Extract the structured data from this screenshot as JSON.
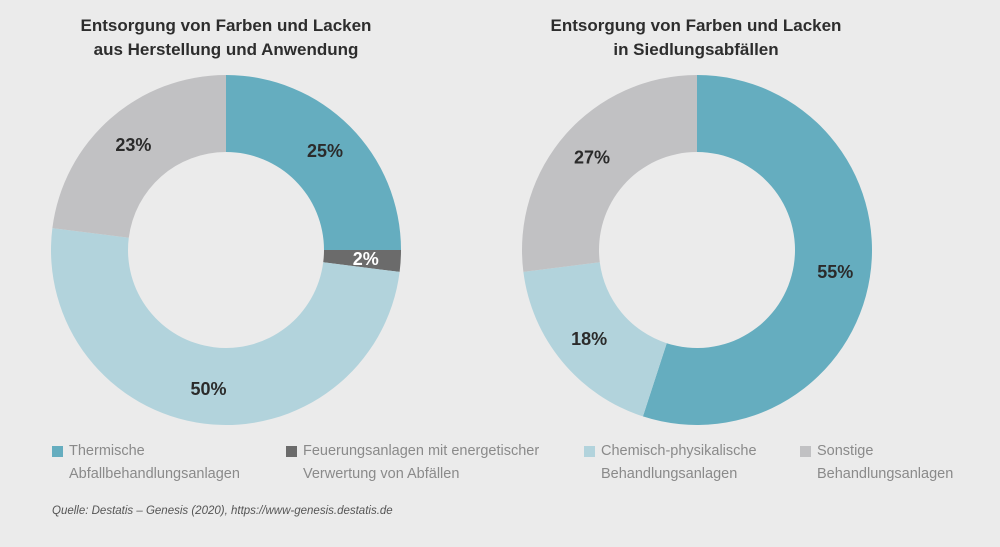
{
  "chart_data": [
    {
      "type": "pie",
      "title": [
        "Entsorgung von Farben und Lacken",
        "aus Herstellung und Anwendung"
      ],
      "slices": [
        {
          "label": "Thermische Abfallbehandlungsanlagen",
          "value": 25,
          "display": "25%",
          "color": "#65adbf"
        },
        {
          "label": "Feuerungsanlagen mit energetischer Verwertung von Abfällen",
          "value": 2,
          "display": "2%",
          "color": "#6b6b6b"
        },
        {
          "label": "Chemisch-physikalische Behandlungsanlagen",
          "value": 50,
          "display": "50%",
          "color": "#b2d3dc"
        },
        {
          "label": "Sonstige Behandlungsanlagen",
          "value": 23,
          "display": "23%",
          "color": "#c1c1c3"
        }
      ]
    },
    {
      "type": "pie",
      "title": [
        "Entsorgung von Farben und Lacken",
        "in Siedlungsabfällen"
      ],
      "slices": [
        {
          "label": "Thermische Abfallbehandlungsanlagen",
          "value": 55,
          "display": "55%",
          "color": "#65adbf"
        },
        {
          "label": "Chemisch-physikalische Behandlungsanlagen",
          "value": 18,
          "display": "18%",
          "color": "#b2d3dc"
        },
        {
          "label": "Sonstige Behandlungsanlagen",
          "value": 27,
          "display": "27%",
          "color": "#c1c1c3"
        }
      ]
    }
  ],
  "legend": [
    {
      "lines": [
        "Thermische",
        "Abfallbehandlungsanlagen"
      ],
      "color": "#65adbf"
    },
    {
      "lines": [
        "Feuerungsanlagen mit energetischer",
        "Verwertung von Abfällen"
      ],
      "color": "#6b6b6b"
    },
    {
      "lines": [
        "Chemisch-physikalische",
        "Behandlungsanlagen"
      ],
      "color": "#b2d3dc"
    },
    {
      "lines": [
        "Sonstige",
        "Behandlungsanlagen"
      ],
      "color": "#c1c1c3"
    }
  ],
  "source": "Quelle: Destatis – Genesis (2020), https://www-genesis.destatis.de"
}
